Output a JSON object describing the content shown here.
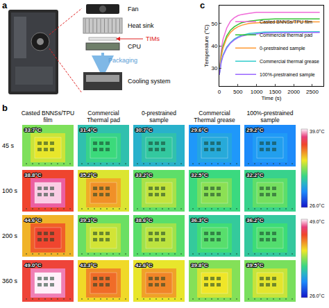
{
  "panel_a": {
    "letter": "a",
    "labels": [
      "Fan",
      "Heat sink",
      "TIMs",
      "CPU"
    ],
    "arrow_label": "Packaging",
    "result": "Cooling system"
  },
  "panel_b": {
    "letter": "b",
    "columns": [
      "Casted BNNSs/TPU film",
      "Commercial Thermal pad",
      "0-prestrained sample",
      "Commercial Thermal grease",
      "100%-prestrained sample"
    ],
    "rows": [
      {
        "label": "45 s",
        "cells": [
          {
            "value": 33.7,
            "label": "33.7°C"
          },
          {
            "value": 31.4,
            "label": "31.4°C"
          },
          {
            "value": 30.7,
            "label": "30.7°C"
          },
          {
            "value": 29.6,
            "label": "29.6°C"
          },
          {
            "value": 29.2,
            "label": "29.2°C"
          }
        ]
      },
      {
        "label": "100 s",
        "cells": [
          {
            "value": 38.8,
            "label": "38.8°C"
          },
          {
            "value": 35.2,
            "label": "35.2°C"
          },
          {
            "value": 33.2,
            "label": "33.2°C"
          },
          {
            "value": 32.5,
            "label": "32.5°C"
          },
          {
            "value": 32.2,
            "label": "32.2°C"
          }
        ]
      },
      {
        "label": "200 s",
        "cells": [
          {
            "value": 44.6,
            "label": "44.6°C"
          },
          {
            "value": 39.1,
            "label": "39.1°C"
          },
          {
            "value": 38.6,
            "label": "38.6°C"
          },
          {
            "value": 36.3,
            "label": "36.3°C"
          },
          {
            "value": 36.2,
            "label": "36.2°C"
          }
        ]
      },
      {
        "label": "360 s",
        "cells": [
          {
            "value": 49.0,
            "label": "49.0°C"
          },
          {
            "value": 43.3,
            "label": "43.3°C"
          },
          {
            "value": 42.6,
            "label": "42.6°C"
          },
          {
            "value": 39.8,
            "label": "39.8°C"
          },
          {
            "value": 39.5,
            "label": "39.5°C"
          }
        ]
      }
    ],
    "colorbars": [
      {
        "first_row": 0,
        "last_row": 1,
        "max": {
          "value": 39.0,
          "label": "39.0°C"
        },
        "min": {
          "value": 26.0,
          "label": "26.0°C"
        }
      },
      {
        "first_row": 2,
        "last_row": 3,
        "max": {
          "value": 49.0,
          "label": "49.0°C"
        },
        "min": {
          "value": 26.0,
          "label": "26.0°C"
        }
      }
    ]
  },
  "panel_c": {
    "letter": "c"
  },
  "chart_data": {
    "type": "line",
    "x_label": "Time (s)",
    "y_label": "Temperature (°C)",
    "x": [
      0,
      50,
      100,
      200,
      300,
      400,
      500,
      600,
      800,
      1000,
      1200,
      1500,
      1800,
      2100,
      2400,
      2700
    ],
    "series": [
      {
        "name": "Casted BNNSs/TPU film",
        "color": "#f06ad8",
        "values": [
          27,
          38,
          43,
          48,
          51,
          52.5,
          53.5,
          54,
          54.5,
          55,
          55,
          55,
          55,
          55,
          55,
          55
        ]
      },
      {
        "name": "Commercial thermal pad",
        "color": "#33c233",
        "values": [
          27,
          36,
          40,
          44.5,
          47,
          48.5,
          49.5,
          50.3,
          51,
          51.5,
          51.8,
          52,
          52,
          52,
          52,
          52
        ]
      },
      {
        "name": "0-prestrained sample",
        "color": "#ff9933",
        "values": [
          27,
          35,
          39,
          43.5,
          46,
          47.5,
          48.5,
          49.2,
          50,
          50.3,
          50.5,
          50.6,
          50.7,
          50.7,
          50.7,
          50.7
        ]
      },
      {
        "name": "Commercial thermal grease",
        "color": "#33cccc",
        "values": [
          27,
          33,
          36,
          39.5,
          41.5,
          43,
          44,
          44.7,
          45.5,
          45.9,
          46.1,
          46.2,
          46.2,
          46.3,
          46.3,
          46.3
        ]
      },
      {
        "name": "100%-prestrained sample",
        "color": "#9966ff",
        "values": [
          27,
          32.5,
          35.5,
          39,
          41.2,
          42.6,
          43.6,
          44.3,
          45,
          45.4,
          45.7,
          45.8,
          45.9,
          46,
          46,
          46
        ]
      }
    ],
    "xlim": [
      0,
      2800
    ],
    "xticks": [
      0,
      500,
      1000,
      1500,
      2000,
      2500
    ],
    "ylim": [
      22,
      58
    ],
    "yticks": [
      30,
      40,
      50
    ],
    "legend": "lower right",
    "grid": false
  }
}
